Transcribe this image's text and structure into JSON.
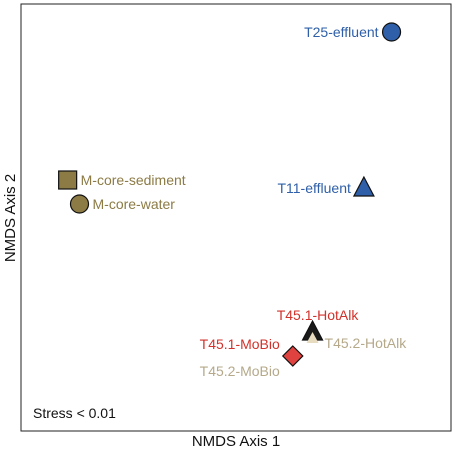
{
  "chart_data": {
    "type": "scatter",
    "xlabel": "NMDS Axis 1",
    "ylabel": "NMDS Axis 2",
    "annotation": "Stress < 0.01",
    "xlim": [
      0,
      100
    ],
    "ylim": [
      0,
      100
    ],
    "grid": false,
    "points": [
      {
        "label": "T25-effluent",
        "x": 89,
        "y": 97,
        "shape": "circle",
        "color": "#2e5fa8",
        "label_color": "#2e5fa8",
        "label_side": "left"
      },
      {
        "label": "T11-effluent",
        "x": 82,
        "y": 58,
        "shape": "triangle",
        "color": "#2e5fa8",
        "label_color": "#2e5fa8",
        "label_side": "left"
      },
      {
        "label": "M-core-sediment",
        "x": 7,
        "y": 60,
        "shape": "square",
        "color": "#8c7b45",
        "label_color": "#8c7b45",
        "label_side": "right"
      },
      {
        "label": "M-core-water",
        "x": 10,
        "y": 54,
        "shape": "circle",
        "color": "#8c7b45",
        "label_color": "#8c7b45",
        "label_side": "right"
      },
      {
        "label": "T45.1-HotAlk",
        "x": 69,
        "y": 22,
        "shape": "triangle",
        "color": "#1a1a1a",
        "label_color": "#d1322b",
        "label_side": "above"
      },
      {
        "label": "T45.2-HotAlk",
        "x": 69,
        "y": 21,
        "shape": "triangle-inner",
        "color": "#e8dcc0",
        "label_color": "#b5a98a",
        "label_side": "right"
      },
      {
        "label": "T45.1-MoBio",
        "x": 64,
        "y": 16,
        "shape": "diamond",
        "color": "#e0423f",
        "label_color": "#d1322b",
        "label_side": "upper-left"
      },
      {
        "label": "T45.2-MoBio",
        "x": 64,
        "y": 15,
        "shape": "none",
        "color": "#e8dcc0",
        "label_color": "#b5a98a",
        "label_side": "lower-left"
      }
    ]
  }
}
